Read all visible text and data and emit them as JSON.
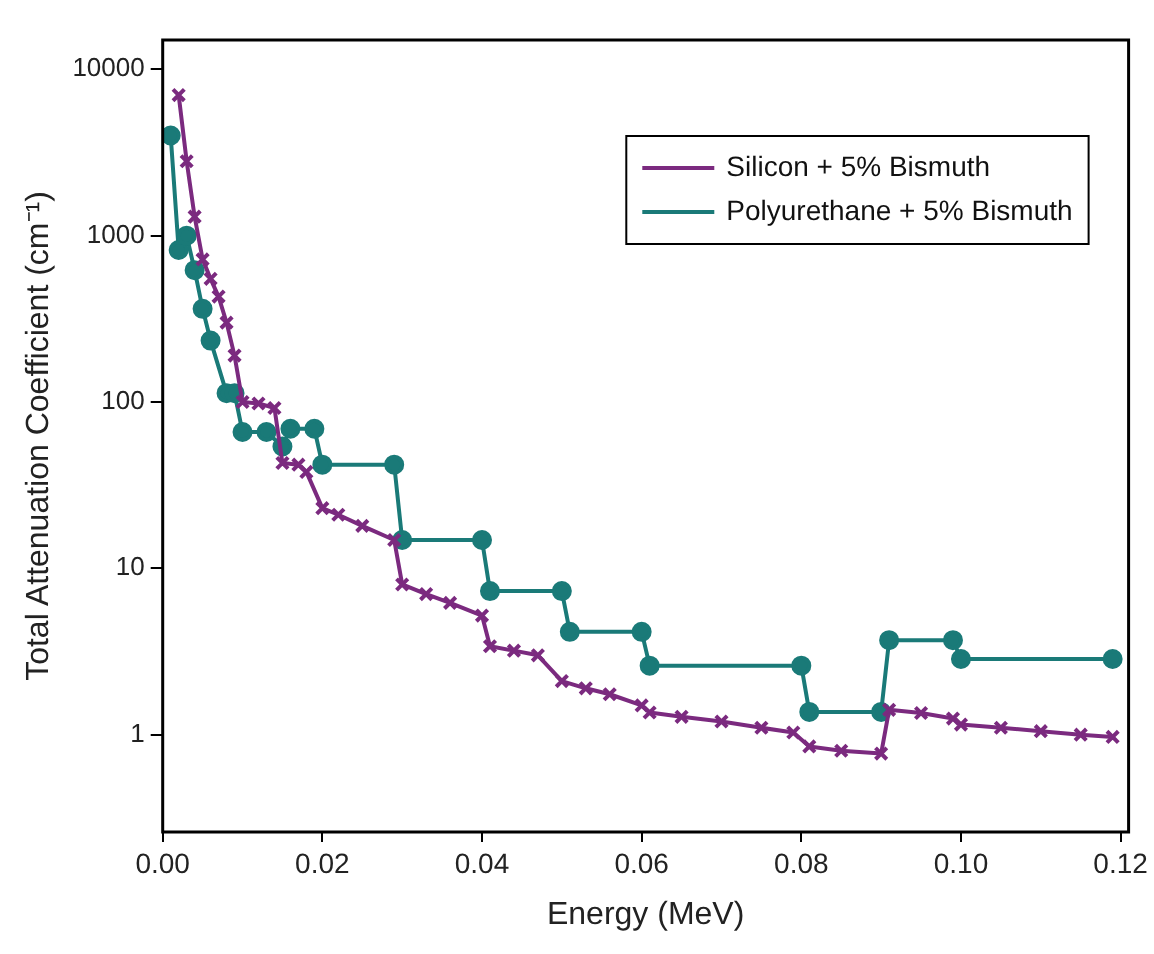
{
  "chart_data": {
    "type": "line",
    "xlabel": "Energy (MeV)",
    "ylabel": "Total Attenuation Coefficient (cm⁻¹)",
    "log": "y",
    "grid": false,
    "legend": "top right",
    "xlim": [
      0,
      0.121
    ],
    "xticks": [
      {
        "value": 0,
        "label": "0.00"
      },
      {
        "value": 0.02,
        "label": "0.02"
      },
      {
        "value": 0.04,
        "label": "0.04"
      },
      {
        "value": 0.06,
        "label": "0.06"
      },
      {
        "value": 0.08,
        "label": "0.08"
      },
      {
        "value": 0.1,
        "label": "0.10"
      },
      {
        "value": 0.12,
        "label": "0.12"
      }
    ],
    "ylim": [
      0.26,
      15000
    ],
    "yticks": [
      1,
      10,
      100,
      1000,
      10000
    ],
    "series": [
      {
        "name": "Silicon + 5% Bismuth",
        "color": "#7b2a7f",
        "marker": "cross",
        "x": [
          0.002,
          0.003,
          0.004,
          0.005,
          0.006,
          0.007,
          0.008,
          0.009,
          0.01,
          0.012,
          0.014,
          0.015,
          0.017,
          0.018,
          0.02,
          0.022,
          0.025,
          0.029,
          0.03,
          0.033,
          0.036,
          0.04,
          0.041,
          0.044,
          0.047,
          0.05,
          0.053,
          0.056,
          0.06,
          0.061,
          0.065,
          0.07,
          0.075,
          0.079,
          0.081,
          0.085,
          0.09,
          0.091,
          0.095,
          0.099,
          0.1,
          0.105,
          0.11,
          0.115,
          0.119
        ],
        "values": [
          7000,
          2800,
          1300,
          720,
          550,
          430,
          300,
          190,
          100,
          98,
          92,
          43,
          42,
          38,
          23,
          21,
          18,
          14.8,
          8,
          7,
          6.2,
          5.2,
          3.4,
          3.2,
          3.0,
          2.1,
          1.9,
          1.75,
          1.5,
          1.36,
          1.28,
          1.2,
          1.1,
          1.03,
          0.85,
          0.8,
          0.77,
          1.41,
          1.35,
          1.25,
          1.15,
          1.1,
          1.05,
          1.0,
          0.97
        ]
      },
      {
        "name": "Polyurethane + 5% Bismuth",
        "color": "#1a7a78",
        "marker": "circle",
        "x": [
          0.001,
          0.002,
          0.003,
          0.004,
          0.005,
          0.006,
          0.008,
          0.009,
          0.01,
          0.013,
          0.015,
          0.016,
          0.019,
          0.02,
          0.029,
          0.03,
          0.04,
          0.041,
          0.05,
          0.051,
          0.06,
          0.061,
          0.08,
          0.081,
          0.09,
          0.091,
          0.099,
          0.1,
          0.119
        ],
        "values": [
          4000,
          820,
          1000,
          620,
          363,
          234,
          113,
          113,
          66,
          66,
          54,
          69,
          69,
          42,
          42,
          14.8,
          14.8,
          7.3,
          7.3,
          4.15,
          4.15,
          2.6,
          2.6,
          1.37,
          1.37,
          3.7,
          3.7,
          2.85,
          2.85
        ]
      }
    ]
  }
}
